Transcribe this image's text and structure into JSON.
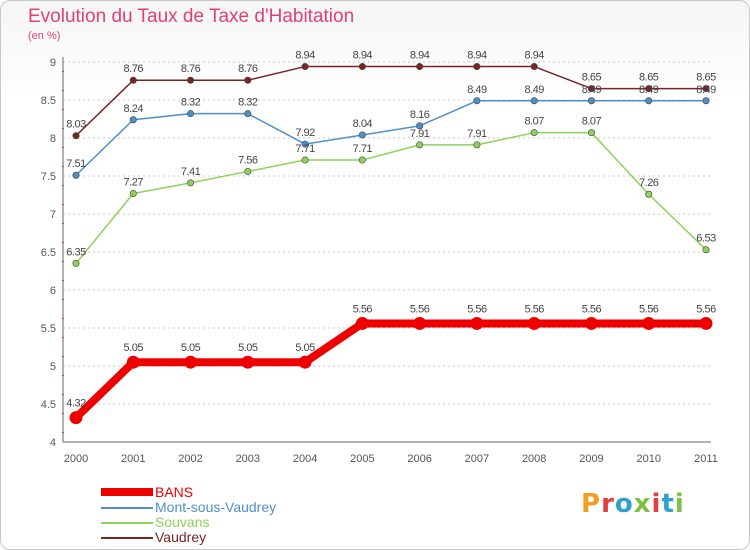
{
  "title": "Evolution du Taux de Taxe d'Habitation",
  "unit_label": "(en %)",
  "logo": {
    "text": "Proxiti",
    "colors": [
      "#f0a020",
      "#e04040",
      "#30a0d0",
      "#80c040",
      "#e04040",
      "#30a0d0",
      "#80c040"
    ]
  },
  "colors": {
    "BANS": "#ee0000",
    "Mont-sous-Vaudrey": "#4f8fc9",
    "Souvans": "#8ed15a",
    "Vaudrey": "#7a2424",
    "grid": "#c8c8c8",
    "axis_text": "#555555"
  },
  "chart_data": {
    "type": "line",
    "title": "Evolution du Taux de Taxe d'Habitation",
    "ylabel": "(en %)",
    "x": [
      "2000",
      "2001",
      "2002",
      "2003",
      "2004",
      "2005",
      "2006",
      "2007",
      "2008",
      "2009",
      "2010",
      "2011"
    ],
    "ylim": [
      4,
      9
    ],
    "yticks": [
      "4",
      "4.5",
      "5",
      "5.5",
      "6",
      "6.5",
      "7",
      "7.5",
      "8",
      "8.5",
      "9"
    ],
    "grid": "horizontal",
    "legend": "bottom-left",
    "series": [
      {
        "name": "BANS",
        "values": [
          4.32,
          5.05,
          5.05,
          5.05,
          5.05,
          5.56,
          5.56,
          5.56,
          5.56,
          5.56,
          5.56,
          5.56
        ],
        "labels": [
          "4.32",
          "5.05",
          "5.05",
          "5.05",
          "5.05",
          "5.56",
          "5.56",
          "5.56",
          "5.56",
          "5.56",
          "5.56",
          "5.56"
        ]
      },
      {
        "name": "Mont-sous-Vaudrey",
        "values": [
          7.51,
          8.24,
          8.32,
          8.32,
          7.92,
          8.04,
          8.16,
          8.49,
          8.49,
          8.49,
          8.49,
          8.49
        ],
        "labels": [
          "7.51",
          "8.24",
          "8.32",
          "8.32",
          "7.92",
          "8.04",
          "8.16",
          "8.49",
          "8.49",
          "8.49",
          "8.49",
          "8.49"
        ]
      },
      {
        "name": "Souvans",
        "values": [
          6.35,
          7.27,
          7.41,
          7.56,
          7.71,
          7.71,
          7.91,
          7.91,
          8.07,
          8.07,
          7.26,
          6.53
        ],
        "labels": [
          "6.35",
          "7.27",
          "7.41",
          "7.56",
          "7.71",
          "7.71",
          "7.91",
          "7.91",
          "8.07",
          "8.07",
          "7.26",
          "6.53"
        ]
      },
      {
        "name": "Vaudrey",
        "values": [
          8.03,
          8.76,
          8.76,
          8.76,
          8.94,
          8.94,
          8.94,
          8.94,
          8.94,
          8.65,
          8.65,
          8.65
        ],
        "labels": [
          "8.03",
          "8.76",
          "8.76",
          "8.76",
          "8.94",
          "8.94",
          "8.94",
          "8.94",
          "8.94",
          "8.65",
          "8.65",
          "8.65"
        ]
      }
    ]
  }
}
